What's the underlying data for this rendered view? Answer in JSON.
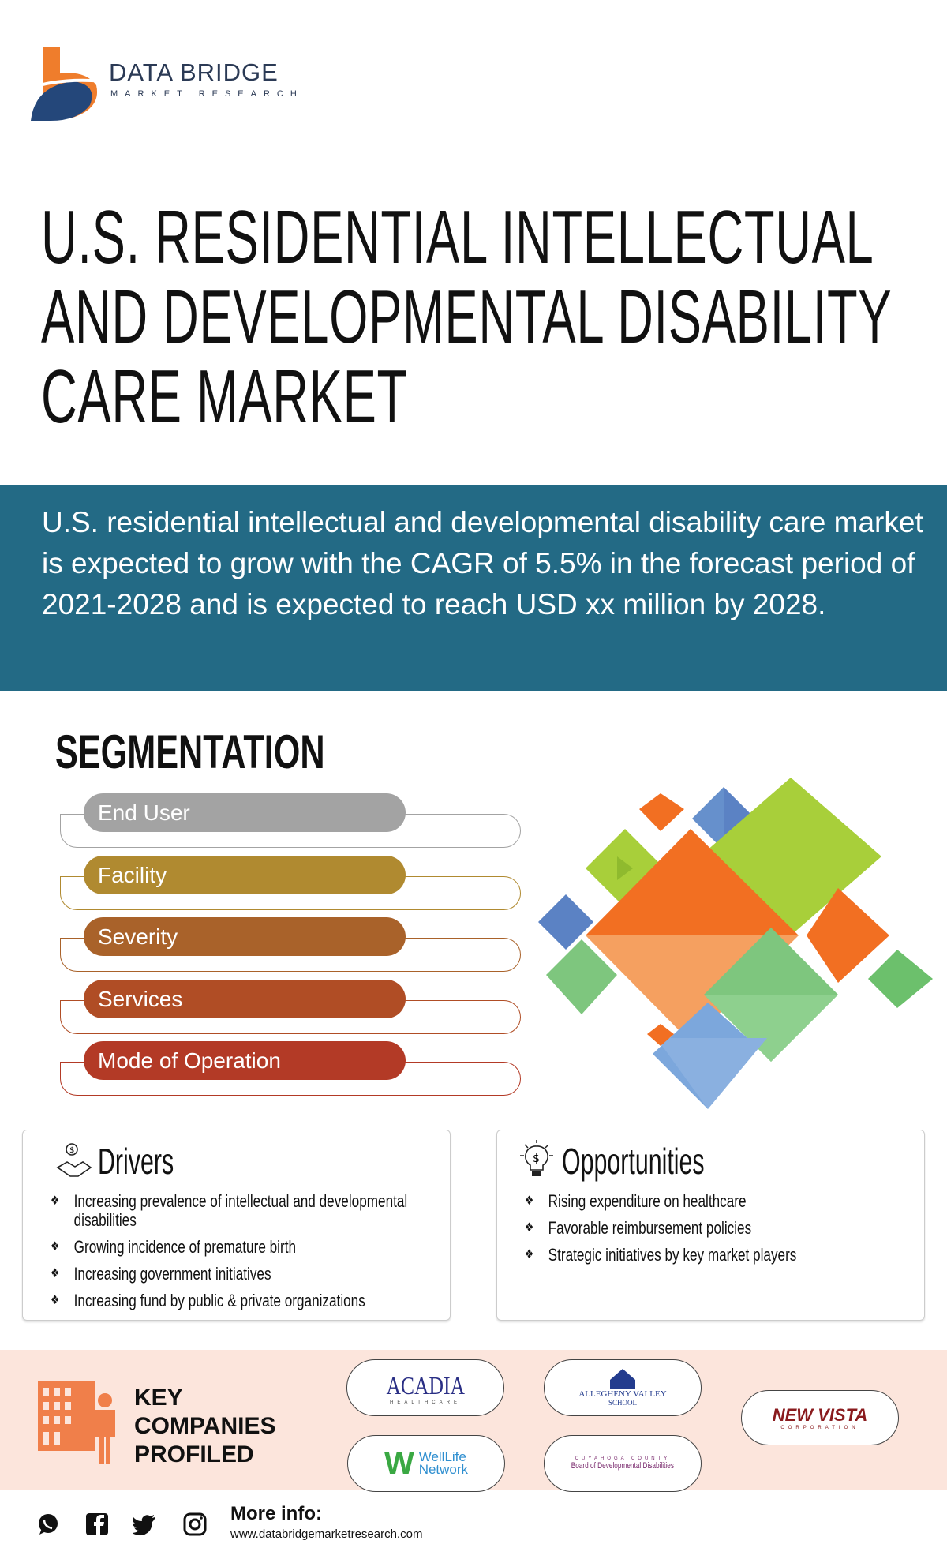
{
  "logo": {
    "name": "DATA BRIDGE",
    "tagline": "MARKET RESEARCH"
  },
  "title": [
    "U.S. RESIDENTIAL INTELLECTUAL",
    "AND DEVELOPMENTAL DISABILITY",
    "CARE MARKET"
  ],
  "summary": "U.S. residential intellectual and developmental disability care market is expected to grow with the CAGR of 5.5% in the forecast period of 2021-2028 and is expected to reach USD xx million by 2028.",
  "segmentation": {
    "title": "SEGMENTATION",
    "items": [
      {
        "label": "End User",
        "color": "#a3a3a3"
      },
      {
        "label": "Facility",
        "color": "#b08a30"
      },
      {
        "label": "Severity",
        "color": "#a9622a"
      },
      {
        "label": "Services",
        "color": "#b04d25"
      },
      {
        "label": "Mode of Operation",
        "color": "#b33a26"
      }
    ]
  },
  "drivers": {
    "title": "Drivers",
    "items": [
      "Increasing prevalence of intellectual and developmental disabilities",
      "Growing incidence of premature birth",
      "Increasing government initiatives",
      "Increasing fund by public & private organizations"
    ]
  },
  "opportunities": {
    "title": "Opportunities",
    "items": [
      "Rising expenditure on healthcare",
      "Favorable reimbursement policies",
      "Strategic initiatives by key market players"
    ]
  },
  "key_companies": {
    "title": [
      "KEY",
      "COMPANIES",
      "PROFILED"
    ],
    "acadia": {
      "name": "ACADIA",
      "sub": "HEALTHCARE"
    },
    "allegheny": {
      "name": "ALLEGHENY VALLEY",
      "sub": "SCHOOL"
    },
    "new_vista": {
      "name": "NEW VISTA",
      "sub": "CORPORATION"
    },
    "wellife": {
      "name": "WellLife",
      "sub": "Network"
    },
    "cuyahoga": {
      "name": "CUYAHOGA COUNTY",
      "sub": "Board of Developmental Disabilities"
    }
  },
  "footer": {
    "more_info": "More info:",
    "url": "www.databridgemarketresearch.com"
  }
}
